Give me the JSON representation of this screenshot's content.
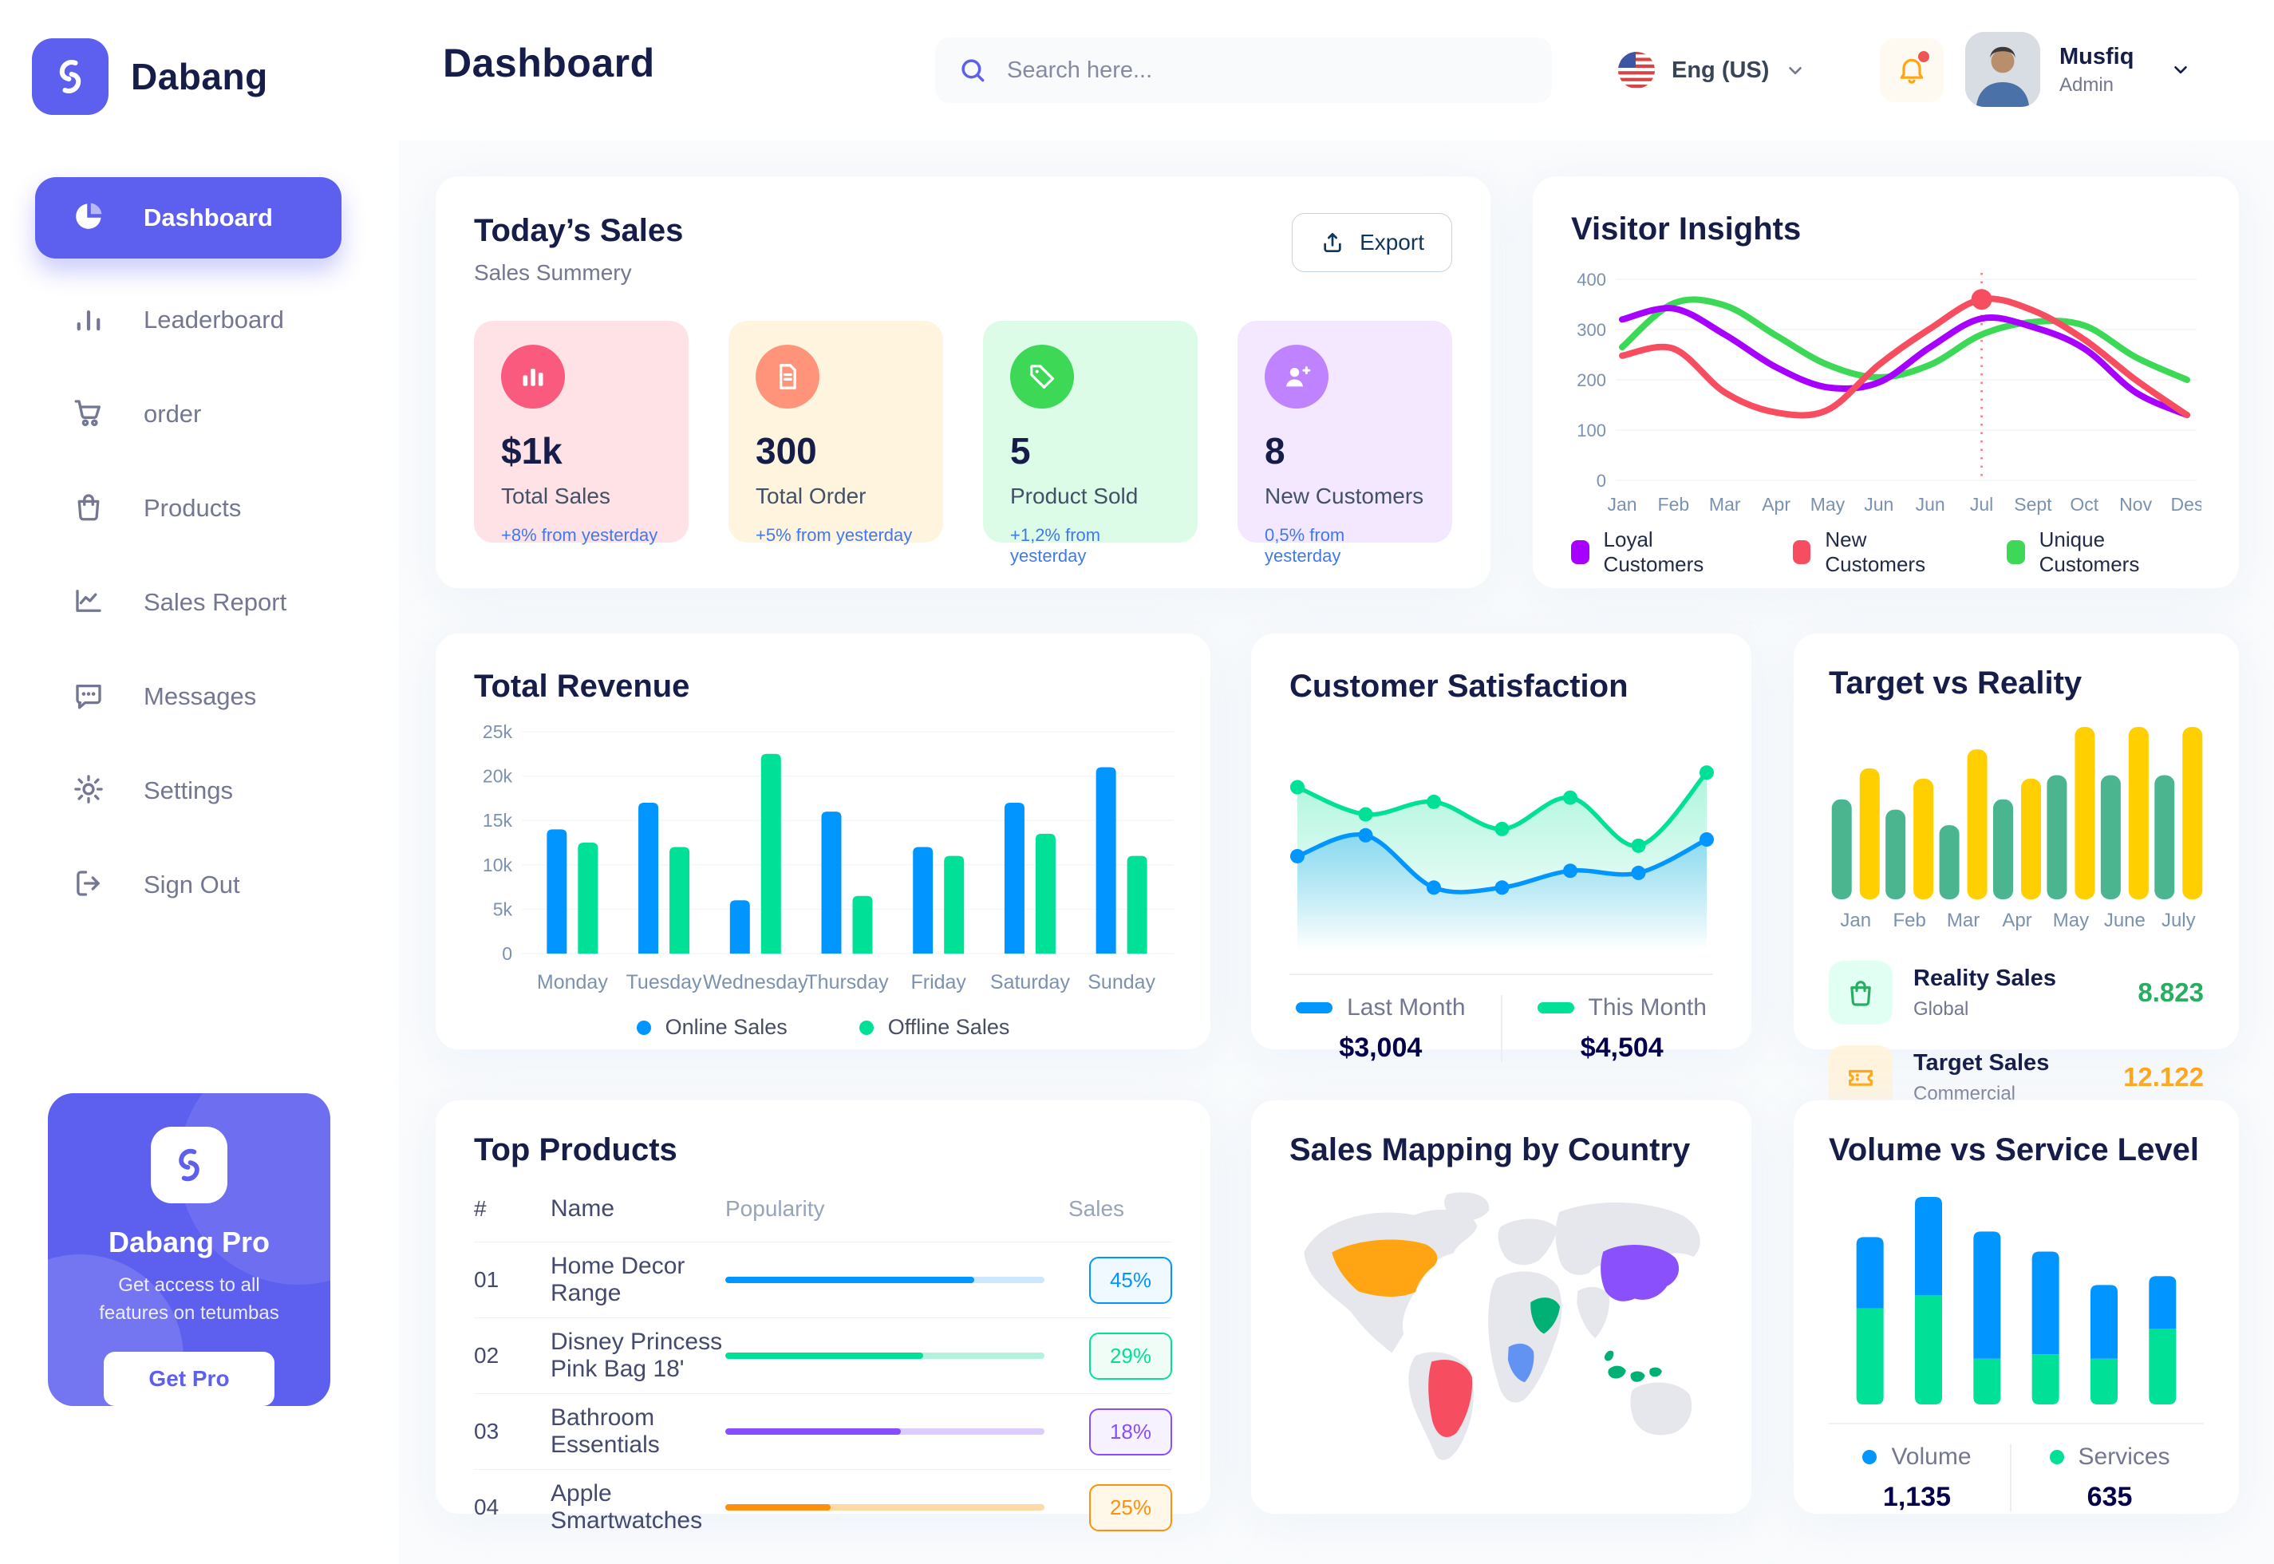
{
  "app": {
    "brand": "Dabang",
    "page_title": "Dashboard"
  },
  "topbar": {
    "search_placeholder": "Search here...",
    "language": "Eng (US)",
    "user_name": "Musfiq",
    "user_role": "Admin"
  },
  "sidebar": {
    "items": [
      {
        "label": "Dashboard"
      },
      {
        "label": "Leaderboard"
      },
      {
        "label": "order"
      },
      {
        "label": "Products"
      },
      {
        "label": "Sales Report"
      },
      {
        "label": "Messages"
      },
      {
        "label": "Settings"
      },
      {
        "label": "Sign Out"
      }
    ],
    "pro_card": {
      "title": "Dabang Pro",
      "subtitle": "Get access to all features on tetumbas",
      "button": "Get Pro"
    }
  },
  "today_sales": {
    "title": "Today’s Sales",
    "subtitle": "Sales Summery",
    "export_label": "Export",
    "delta_color": "#4079ED",
    "cards": [
      {
        "value": "$1k",
        "label": "Total Sales",
        "delta": "+8% from yesterday",
        "bg": "#FFE2E5",
        "accent": "#FA5A7D"
      },
      {
        "value": "300",
        "label": "Total Order",
        "delta": "+5% from yesterday",
        "bg": "#FFF4DE",
        "accent": "#FF947A"
      },
      {
        "value": "5",
        "label": "Product Sold",
        "delta": "+1,2% from yesterday",
        "bg": "#DCFCE7",
        "accent": "#3CD856"
      },
      {
        "value": "8",
        "label": "New Customers",
        "delta": "0,5% from yesterday",
        "bg": "#F3E8FF",
        "accent": "#BF83FF"
      }
    ]
  },
  "top_products": {
    "title": "Top Products",
    "headers": {
      "num": "#",
      "name": "Name",
      "popularity": "Popularity",
      "sales": "Sales"
    },
    "rows": [
      {
        "num": "01",
        "name": "Home Decor Range",
        "popularity": 78,
        "sales": "45%",
        "color": "#0095FF",
        "track": "#CDE7FF",
        "badge_bg": "#F0F9FF"
      },
      {
        "num": "02",
        "name": "Disney Princess Pink Bag 18'",
        "popularity": 62,
        "sales": "29%",
        "color": "#00E096",
        "track": "#B5F2DB",
        "badge_bg": "#F0FDF7"
      },
      {
        "num": "03",
        "name": "Bathroom Essentials",
        "popularity": 55,
        "sales": "18%",
        "color": "#884DFF",
        "track": "#DCCCFF",
        "badge_bg": "#F7F2FF"
      },
      {
        "num": "04",
        "name": "Apple Smartwatches",
        "popularity": 33,
        "sales": "25%",
        "color": "#FF8F0D",
        "track": "#FFD9A6",
        "badge_bg": "#FFF7E8"
      }
    ]
  },
  "sales_mapping": {
    "title": "Sales Mapping by Country",
    "base_color": "#E5E7EC",
    "colors": {
      "usa": "#FFA412",
      "brazil": "#F64E60",
      "dr_congo": "#6393F2",
      "saudi_arabia": "#00B074",
      "china": "#8950FC",
      "indonesia": "#00B074"
    },
    "countries": [
      {
        "name": "United States",
        "color": "#FFA412"
      },
      {
        "name": "Brazil",
        "color": "#F64E60"
      },
      {
        "name": "DR Congo",
        "color": "#6393F2"
      },
      {
        "name": "Saudi Arabia",
        "color": "#00B074"
      },
      {
        "name": "China",
        "color": "#8950FC"
      },
      {
        "name": "Indonesia",
        "color": "#00B074"
      }
    ]
  },
  "chart_data": [
    {
      "id": "visitor_insights",
      "type": "line",
      "title": "Visitor Insights",
      "x": [
        "Jan",
        "Feb",
        "Mar",
        "Apr",
        "May",
        "Jun",
        "Jun",
        "Jul",
        "Sept",
        "Oct",
        "Nov",
        "Des"
      ],
      "ylim": [
        0,
        400
      ],
      "yticks": [
        0,
        100,
        200,
        300,
        400
      ],
      "grid": true,
      "legend_position": "bottom",
      "highlight": {
        "x_index": 7,
        "series": "New Customers",
        "line_color": "#F64E60"
      },
      "series": [
        {
          "name": "Loyal Customers",
          "color": "#A700FF",
          "values": [
            320,
            342,
            290,
            225,
            185,
            195,
            265,
            322,
            305,
            262,
            175,
            130
          ]
        },
        {
          "name": "New Customers",
          "color": "#F64E60",
          "values": [
            248,
            262,
            175,
            135,
            140,
            230,
            302,
            360,
            338,
            280,
            200,
            130
          ]
        },
        {
          "name": "Unique Customers",
          "color": "#3CD856",
          "values": [
            265,
            352,
            348,
            288,
            230,
            205,
            230,
            290,
            315,
            308,
            245,
            200
          ]
        }
      ]
    },
    {
      "id": "total_revenue",
      "type": "bar",
      "title": "Total Revenue",
      "categories": [
        "Monday",
        "Tuesday",
        "Wednesday",
        "Thursday",
        "Friday",
        "Saturday",
        "Sunday"
      ],
      "ylim": [
        0,
        25000
      ],
      "ytick_labels": [
        "0",
        "5k",
        "10k",
        "15k",
        "20k",
        "25k"
      ],
      "grid": true,
      "legend_position": "bottom",
      "series": [
        {
          "name": "Online Sales",
          "color": "#0095FF",
          "values": [
            14000,
            17000,
            6000,
            16000,
            12000,
            17000,
            21000
          ]
        },
        {
          "name": "Offline Sales",
          "color": "#00E096",
          "values": [
            12500,
            12000,
            22500,
            6500,
            11000,
            13500,
            11000
          ]
        }
      ]
    },
    {
      "id": "customer_satisfaction",
      "type": "area",
      "title": "Customer Satisfaction",
      "x": [
        1,
        2,
        3,
        4,
        5,
        6,
        7
      ],
      "ylim": [
        0,
        100
      ],
      "legend_position": "bottom",
      "series": [
        {
          "name": "Last Month",
          "total": "$3,004",
          "color": "#0095FF",
          "values": [
            42,
            52,
            27,
            27,
            35,
            34,
            50
          ]
        },
        {
          "name": "This Month",
          "total": "$4,504",
          "color": "#00E096",
          "values": [
            75,
            62,
            68,
            55,
            70,
            47,
            82
          ]
        }
      ]
    },
    {
      "id": "target_vs_reality",
      "type": "bar",
      "title": "Target vs Reality",
      "categories": [
        "Jan",
        "Feb",
        "Mar",
        "Apr",
        "May",
        "June",
        "July"
      ],
      "ylim": [
        0,
        100
      ],
      "series": [
        {
          "name": "Reality Sales",
          "subtitle": "Global",
          "total": "8.823",
          "color": "#4AB58E",
          "value_color": "#27AE60",
          "icon_bg": "#E2FFF3",
          "values": [
            58,
            52,
            43,
            58,
            72,
            72,
            72
          ]
        },
        {
          "name": "Target Sales",
          "subtitle": "Commercial",
          "total": "12.122",
          "color": "#FFCF00",
          "value_color": "#FFA412",
          "icon_bg": "#FFF4DE",
          "values": [
            76,
            70,
            87,
            70,
            100,
            100,
            100
          ]
        }
      ]
    },
    {
      "id": "volume_vs_service",
      "type": "stacked-bar",
      "title": "Volume vs Service Level",
      "legend_position": "bottom",
      "series": [
        {
          "name": "Volume",
          "total": "1,135",
          "color": "#0095FF",
          "values": [
            320,
            440,
            570,
            460,
            330,
            235
          ]
        },
        {
          "name": "Services",
          "total": "635",
          "color": "#00E096",
          "values": [
            430,
            490,
            205,
            225,
            205,
            340
          ]
        }
      ]
    }
  ]
}
